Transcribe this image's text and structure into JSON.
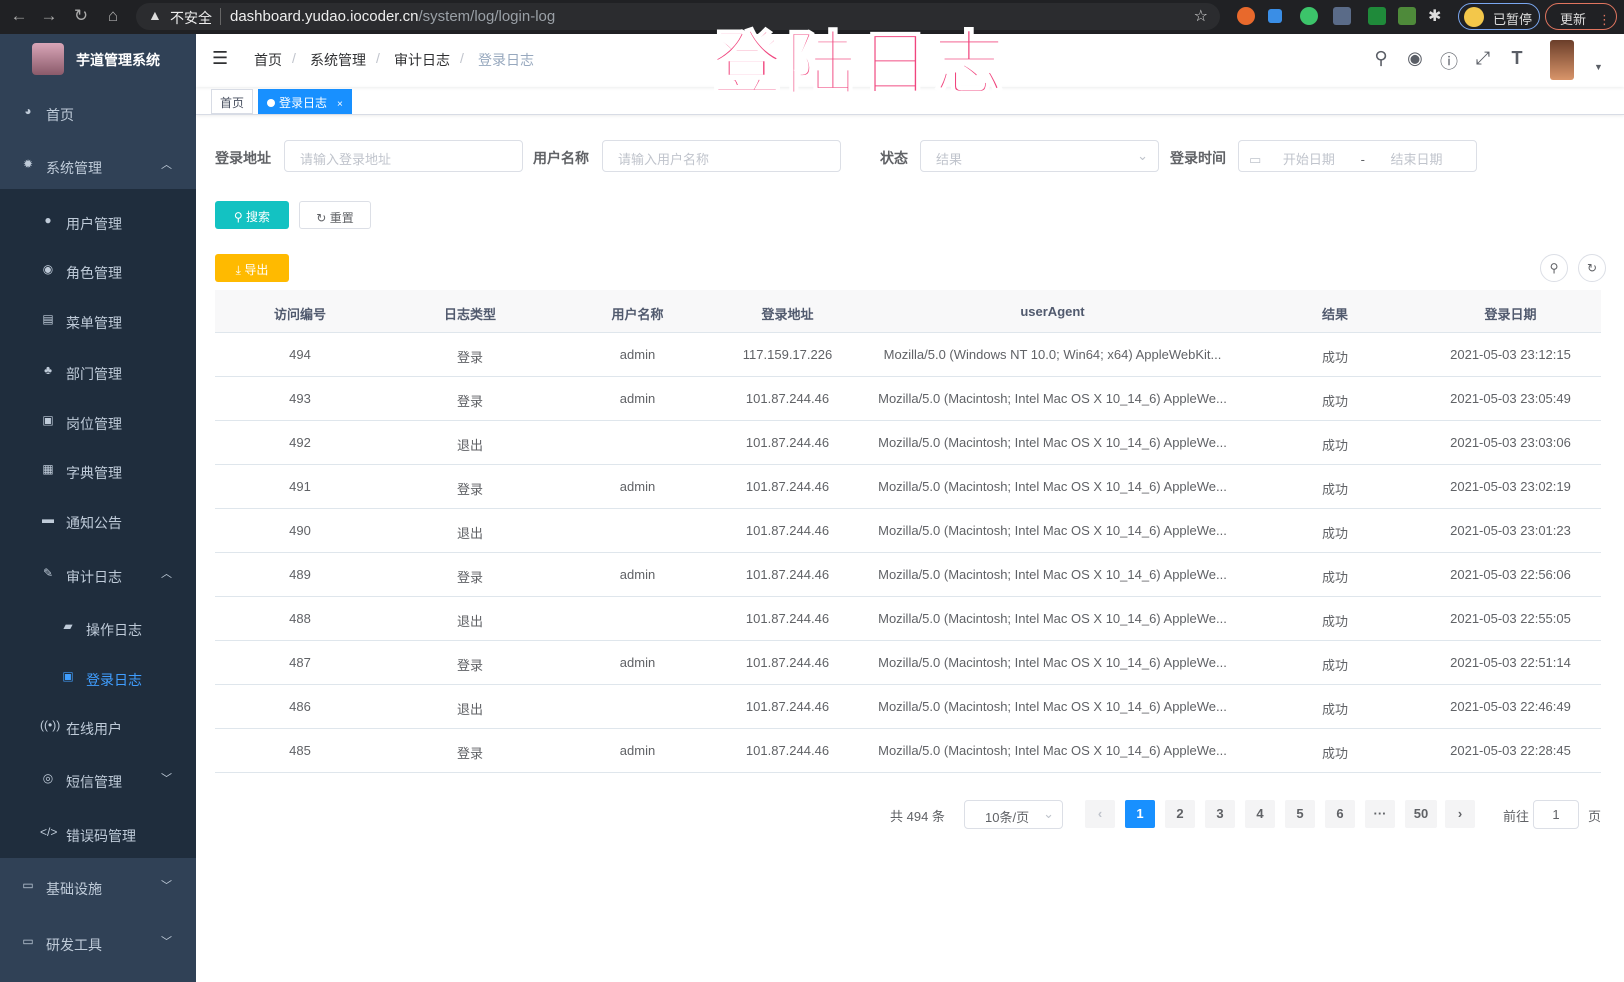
{
  "browser": {
    "security": "不安全",
    "url_host": "dashboard.yudao.iocoder.cn",
    "url_path": "/system/log/login-log",
    "paused": "已暂停",
    "update": "更新"
  },
  "overlay_title": "登陆日志",
  "sidebar": {
    "logo_text": "芋道管理系统",
    "items": [
      {
        "label": "首页",
        "icon": "dashboard-icon"
      },
      {
        "label": "系统管理",
        "icon": "gear-icon",
        "expanded": true
      },
      {
        "label": "用户管理",
        "icon": "user-icon"
      },
      {
        "label": "角色管理",
        "icon": "peoples-icon"
      },
      {
        "label": "菜单管理",
        "icon": "tree-table-icon"
      },
      {
        "label": "部门管理",
        "icon": "tree-icon"
      },
      {
        "label": "岗位管理",
        "icon": "post-icon"
      },
      {
        "label": "字典管理",
        "icon": "dict-icon"
      },
      {
        "label": "通知公告",
        "icon": "message-icon"
      },
      {
        "label": "审计日志",
        "icon": "log-icon",
        "expanded": true
      },
      {
        "label": "操作日志",
        "icon": "form-icon"
      },
      {
        "label": "登录日志",
        "icon": "logininfor-icon",
        "active": true
      },
      {
        "label": "在线用户",
        "icon": "online-icon"
      },
      {
        "label": "短信管理",
        "icon": "validcode-icon",
        "expanded": false
      },
      {
        "label": "错误码管理",
        "icon": "code-icon"
      },
      {
        "label": "基础设施",
        "icon": "monitor-icon",
        "expanded": false
      },
      {
        "label": "研发工具",
        "icon": "tool-icon",
        "expanded": false
      }
    ]
  },
  "breadcrumb": [
    "首页",
    "系统管理",
    "审计日志",
    "登录日志"
  ],
  "tags": [
    {
      "label": "首页"
    },
    {
      "label": "登录日志",
      "active": true
    }
  ],
  "search_form": {
    "address_label": "登录地址",
    "address_placeholder": "请输入登录地址",
    "username_label": "用户名称",
    "username_placeholder": "请输入用户名称",
    "status_label": "状态",
    "status_placeholder": "结果",
    "time_label": "登录时间",
    "start_placeholder": "开始日期",
    "range_sep": "-",
    "end_placeholder": "结束日期",
    "search_btn": "搜索",
    "reset_btn": "重置"
  },
  "export_btn": "导出",
  "colors": {
    "sidebar": "#304156",
    "submenu": "#1f2d3d",
    "primary": "#1890ff",
    "search": "#13c2c2",
    "export": "#ffba00",
    "overlay": "#f0457e"
  },
  "table": {
    "columns": [
      "访问编号",
      "日志类型",
      "用户名称",
      "登录地址",
      "userAgent",
      "结果",
      "登录日期"
    ],
    "rows": [
      [
        "494",
        "登录",
        "admin",
        "117.159.17.226",
        "Mozilla/5.0 (Windows NT 10.0; Win64; x64) AppleWebKit...",
        "成功",
        "2021-05-03 23:12:15"
      ],
      [
        "493",
        "登录",
        "admin",
        "101.87.244.46",
        "Mozilla/5.0 (Macintosh; Intel Mac OS X 10_14_6) AppleWe...",
        "成功",
        "2021-05-03 23:05:49"
      ],
      [
        "492",
        "退出",
        "",
        "101.87.244.46",
        "Mozilla/5.0 (Macintosh; Intel Mac OS X 10_14_6) AppleWe...",
        "成功",
        "2021-05-03 23:03:06"
      ],
      [
        "491",
        "登录",
        "admin",
        "101.87.244.46",
        "Mozilla/5.0 (Macintosh; Intel Mac OS X 10_14_6) AppleWe...",
        "成功",
        "2021-05-03 23:02:19"
      ],
      [
        "490",
        "退出",
        "",
        "101.87.244.46",
        "Mozilla/5.0 (Macintosh; Intel Mac OS X 10_14_6) AppleWe...",
        "成功",
        "2021-05-03 23:01:23"
      ],
      [
        "489",
        "登录",
        "admin",
        "101.87.244.46",
        "Mozilla/5.0 (Macintosh; Intel Mac OS X 10_14_6) AppleWe...",
        "成功",
        "2021-05-03 22:56:06"
      ],
      [
        "488",
        "退出",
        "",
        "101.87.244.46",
        "Mozilla/5.0 (Macintosh; Intel Mac OS X 10_14_6) AppleWe...",
        "成功",
        "2021-05-03 22:55:05"
      ],
      [
        "487",
        "登录",
        "admin",
        "101.87.244.46",
        "Mozilla/5.0 (Macintosh; Intel Mac OS X 10_14_6) AppleWe...",
        "成功",
        "2021-05-03 22:51:14"
      ],
      [
        "486",
        "退出",
        "",
        "101.87.244.46",
        "Mozilla/5.0 (Macintosh; Intel Mac OS X 10_14_6) AppleWe...",
        "成功",
        "2021-05-03 22:46:49"
      ],
      [
        "485",
        "登录",
        "admin",
        "101.87.244.46",
        "Mozilla/5.0 (Macintosh; Intel Mac OS X 10_14_6) AppleWe...",
        "成功",
        "2021-05-03 22:28:45"
      ]
    ]
  },
  "pagination": {
    "total": "共 494 条",
    "page_size": "10条/页",
    "pages": [
      "1",
      "2",
      "3",
      "4",
      "5",
      "6",
      "···",
      "50"
    ],
    "current": "1",
    "goto_label": "前往",
    "goto_value": "1",
    "page_unit": "页"
  }
}
